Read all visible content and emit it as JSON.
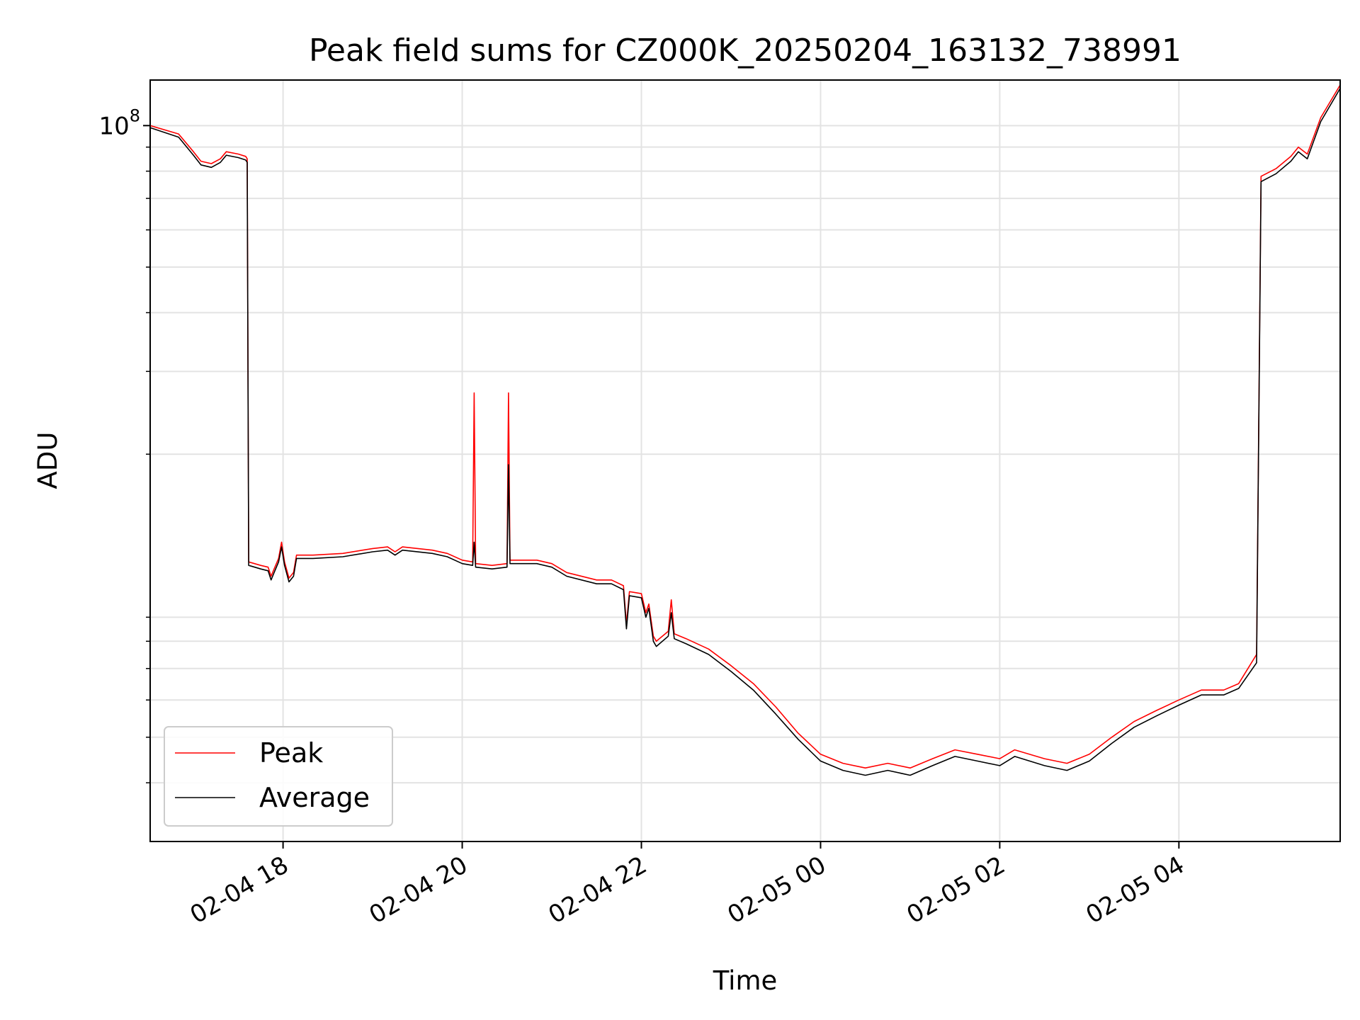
{
  "chart_data": {
    "type": "line",
    "title": "Peak field sums for CZ000K_20250204_163132_738991",
    "xlabel": "Time",
    "ylabel": "ADU",
    "x_tick_labels": [
      "02-04 18",
      "02-04 20",
      "02-04 22",
      "02-05 00",
      "02-05 02",
      "02-05 04"
    ],
    "x_ticks": [
      "2025-02-04 18:00",
      "2025-02-04 20:00",
      "2025-02-04 22:00",
      "2025-02-05 00:00",
      "2025-02-05 02:00",
      "2025-02-05 04:00"
    ],
    "y_tick_labels": [
      {
        "base": "10",
        "exp": "8"
      }
    ],
    "xlim": [
      "2025-02-04 16:31",
      "2025-02-05 05:48"
    ],
    "ylim": [
      3000000,
      125000000
    ],
    "yscale": "log",
    "grid": true,
    "legend_position": "lower-left",
    "series": [
      {
        "name": "Peak",
        "color": "#ff0000",
        "points": [
          [
            "2025-02-04 16:31",
            100000000
          ],
          [
            "2025-02-04 16:50",
            96000000
          ],
          [
            "2025-02-04 17:00",
            88000000
          ],
          [
            "2025-02-04 17:05",
            84000000
          ],
          [
            "2025-02-04 17:12",
            83000000
          ],
          [
            "2025-02-04 17:18",
            85000000
          ],
          [
            "2025-02-04 17:22",
            88000000
          ],
          [
            "2025-02-04 17:30",
            87000000
          ],
          [
            "2025-02-04 17:35",
            86000000
          ],
          [
            "2025-02-04 17:36",
            85000000
          ],
          [
            "2025-02-04 17:37",
            11800000
          ],
          [
            "2025-02-04 17:45",
            11600000
          ],
          [
            "2025-02-04 17:50",
            11500000
          ],
          [
            "2025-02-04 17:52",
            11000000
          ],
          [
            "2025-02-04 17:54",
            11400000
          ],
          [
            "2025-02-04 17:57",
            12000000
          ],
          [
            "2025-02-04 17:59",
            13000000
          ],
          [
            "2025-02-04 18:01",
            11800000
          ],
          [
            "2025-02-04 18:04",
            10900000
          ],
          [
            "2025-02-04 18:07",
            11200000
          ],
          [
            "2025-02-04 18:09",
            12200000
          ],
          [
            "2025-02-04 18:20",
            12200000
          ],
          [
            "2025-02-04 18:40",
            12300000
          ],
          [
            "2025-02-04 19:00",
            12600000
          ],
          [
            "2025-02-04 19:10",
            12700000
          ],
          [
            "2025-02-04 19:15",
            12400000
          ],
          [
            "2025-02-04 19:20",
            12700000
          ],
          [
            "2025-02-04 19:40",
            12500000
          ],
          [
            "2025-02-04 19:50",
            12300000
          ],
          [
            "2025-02-04 20:00",
            11900000
          ],
          [
            "2025-02-04 20:07",
            11800000
          ],
          [
            "2025-02-04 20:08",
            27000000
          ],
          [
            "2025-02-04 20:09",
            11700000
          ],
          [
            "2025-02-04 20:20",
            11600000
          ],
          [
            "2025-02-04 20:30",
            11700000
          ],
          [
            "2025-02-04 20:31",
            27000000
          ],
          [
            "2025-02-04 20:32",
            11900000
          ],
          [
            "2025-02-04 20:50",
            11900000
          ],
          [
            "2025-02-04 21:00",
            11700000
          ],
          [
            "2025-02-04 21:10",
            11200000
          ],
          [
            "2025-02-04 21:30",
            10800000
          ],
          [
            "2025-02-04 21:40",
            10800000
          ],
          [
            "2025-02-04 21:48",
            10500000
          ],
          [
            "2025-02-04 21:50",
            8700000
          ],
          [
            "2025-02-04 21:52",
            10200000
          ],
          [
            "2025-02-04 22:00",
            10100000
          ],
          [
            "2025-02-04 22:03",
            9200000
          ],
          [
            "2025-02-04 22:05",
            9600000
          ],
          [
            "2025-02-04 22:08",
            8200000
          ],
          [
            "2025-02-04 22:10",
            8000000
          ],
          [
            "2025-02-04 22:18",
            8400000
          ],
          [
            "2025-02-04 22:20",
            9800000
          ],
          [
            "2025-02-04 22:22",
            8300000
          ],
          [
            "2025-02-04 22:30",
            8100000
          ],
          [
            "2025-02-04 22:45",
            7700000
          ],
          [
            "2025-02-04 23:00",
            7100000
          ],
          [
            "2025-02-04 23:15",
            6500000
          ],
          [
            "2025-02-04 23:30",
            5800000
          ],
          [
            "2025-02-04 23:45",
            5100000
          ],
          [
            "2025-02-05 00:00",
            4600000
          ],
          [
            "2025-02-05 00:15",
            4400000
          ],
          [
            "2025-02-05 00:30",
            4300000
          ],
          [
            "2025-02-05 00:45",
            4400000
          ],
          [
            "2025-02-05 01:00",
            4300000
          ],
          [
            "2025-02-05 01:15",
            4500000
          ],
          [
            "2025-02-05 01:30",
            4700000
          ],
          [
            "2025-02-05 01:45",
            4600000
          ],
          [
            "2025-02-05 02:00",
            4500000
          ],
          [
            "2025-02-05 02:10",
            4700000
          ],
          [
            "2025-02-05 02:30",
            4500000
          ],
          [
            "2025-02-05 02:45",
            4400000
          ],
          [
            "2025-02-05 03:00",
            4600000
          ],
          [
            "2025-02-05 03:15",
            5000000
          ],
          [
            "2025-02-05 03:30",
            5400000
          ],
          [
            "2025-02-05 03:45",
            5700000
          ],
          [
            "2025-02-05 04:00",
            6000000
          ],
          [
            "2025-02-05 04:15",
            6300000
          ],
          [
            "2025-02-05 04:30",
            6300000
          ],
          [
            "2025-02-05 04:40",
            6500000
          ],
          [
            "2025-02-05 04:52",
            7500000
          ],
          [
            "2025-02-05 04:55",
            78000000
          ],
          [
            "2025-02-05 05:05",
            81000000
          ],
          [
            "2025-02-05 05:15",
            86000000
          ],
          [
            "2025-02-05 05:20",
            90000000
          ],
          [
            "2025-02-05 05:26",
            87000000
          ],
          [
            "2025-02-05 05:35",
            104000000
          ],
          [
            "2025-02-05 05:48",
            122000000
          ]
        ]
      },
      {
        "name": "Average",
        "color": "#000000",
        "points": [
          [
            "2025-02-04 16:31",
            99000000
          ],
          [
            "2025-02-04 16:50",
            94500000
          ],
          [
            "2025-02-04 17:00",
            86500000
          ],
          [
            "2025-02-04 17:05",
            82500000
          ],
          [
            "2025-02-04 17:12",
            81500000
          ],
          [
            "2025-02-04 17:18",
            83500000
          ],
          [
            "2025-02-04 17:22",
            86500000
          ],
          [
            "2025-02-04 17:30",
            85500000
          ],
          [
            "2025-02-04 17:35",
            84500000
          ],
          [
            "2025-02-04 17:36",
            83500000
          ],
          [
            "2025-02-04 17:37",
            11600000
          ],
          [
            "2025-02-04 17:45",
            11400000
          ],
          [
            "2025-02-04 17:50",
            11300000
          ],
          [
            "2025-02-04 17:52",
            10800000
          ],
          [
            "2025-02-04 17:54",
            11200000
          ],
          [
            "2025-02-04 17:57",
            11800000
          ],
          [
            "2025-02-04 17:59",
            12700000
          ],
          [
            "2025-02-04 18:01",
            11600000
          ],
          [
            "2025-02-04 18:04",
            10700000
          ],
          [
            "2025-02-04 18:07",
            11000000
          ],
          [
            "2025-02-04 18:09",
            12000000
          ],
          [
            "2025-02-04 18:20",
            12000000
          ],
          [
            "2025-02-04 18:40",
            12100000
          ],
          [
            "2025-02-04 19:00",
            12400000
          ],
          [
            "2025-02-04 19:10",
            12500000
          ],
          [
            "2025-02-04 19:15",
            12200000
          ],
          [
            "2025-02-04 19:20",
            12500000
          ],
          [
            "2025-02-04 19:40",
            12300000
          ],
          [
            "2025-02-04 19:50",
            12100000
          ],
          [
            "2025-02-04 20:00",
            11700000
          ],
          [
            "2025-02-04 20:07",
            11600000
          ],
          [
            "2025-02-04 20:08",
            13000000
          ],
          [
            "2025-02-04 20:09",
            11500000
          ],
          [
            "2025-02-04 20:20",
            11400000
          ],
          [
            "2025-02-04 20:30",
            11500000
          ],
          [
            "2025-02-04 20:31",
            19000000
          ],
          [
            "2025-02-04 20:32",
            11700000
          ],
          [
            "2025-02-04 20:50",
            11700000
          ],
          [
            "2025-02-04 21:00",
            11500000
          ],
          [
            "2025-02-04 21:10",
            11000000
          ],
          [
            "2025-02-04 21:30",
            10600000
          ],
          [
            "2025-02-04 21:40",
            10600000
          ],
          [
            "2025-02-04 21:48",
            10300000
          ],
          [
            "2025-02-04 21:50",
            8500000
          ],
          [
            "2025-02-04 21:52",
            10000000
          ],
          [
            "2025-02-04 22:00",
            9900000
          ],
          [
            "2025-02-04 22:03",
            9000000
          ],
          [
            "2025-02-04 22:05",
            9400000
          ],
          [
            "2025-02-04 22:08",
            8000000
          ],
          [
            "2025-02-04 22:10",
            7800000
          ],
          [
            "2025-02-04 22:18",
            8200000
          ],
          [
            "2025-02-04 22:20",
            9200000
          ],
          [
            "2025-02-04 22:22",
            8100000
          ],
          [
            "2025-02-04 22:30",
            7900000
          ],
          [
            "2025-02-04 22:45",
            7500000
          ],
          [
            "2025-02-04 23:00",
            6900000
          ],
          [
            "2025-02-04 23:15",
            6300000
          ],
          [
            "2025-02-04 23:30",
            5600000
          ],
          [
            "2025-02-04 23:45",
            4950000
          ],
          [
            "2025-02-05 00:00",
            4450000
          ],
          [
            "2025-02-05 00:15",
            4250000
          ],
          [
            "2025-02-05 00:30",
            4150000
          ],
          [
            "2025-02-05 00:45",
            4250000
          ],
          [
            "2025-02-05 01:00",
            4150000
          ],
          [
            "2025-02-05 01:15",
            4350000
          ],
          [
            "2025-02-05 01:30",
            4550000
          ],
          [
            "2025-02-05 01:45",
            4450000
          ],
          [
            "2025-02-05 02:00",
            4350000
          ],
          [
            "2025-02-05 02:10",
            4550000
          ],
          [
            "2025-02-05 02:30",
            4350000
          ],
          [
            "2025-02-05 02:45",
            4250000
          ],
          [
            "2025-02-05 03:00",
            4450000
          ],
          [
            "2025-02-05 03:15",
            4850000
          ],
          [
            "2025-02-05 03:30",
            5250000
          ],
          [
            "2025-02-05 03:45",
            5550000
          ],
          [
            "2025-02-05 04:00",
            5850000
          ],
          [
            "2025-02-05 04:15",
            6150000
          ],
          [
            "2025-02-05 04:30",
            6150000
          ],
          [
            "2025-02-05 04:40",
            6350000
          ],
          [
            "2025-02-05 04:52",
            7200000
          ],
          [
            "2025-02-05 04:55",
            76000000
          ],
          [
            "2025-02-05 05:05",
            79000000
          ],
          [
            "2025-02-05 05:15",
            84000000
          ],
          [
            "2025-02-05 05:20",
            88000000
          ],
          [
            "2025-02-05 05:26",
            85000000
          ],
          [
            "2025-02-05 05:35",
            102000000
          ],
          [
            "2025-02-05 05:48",
            120000000
          ]
        ]
      }
    ]
  }
}
